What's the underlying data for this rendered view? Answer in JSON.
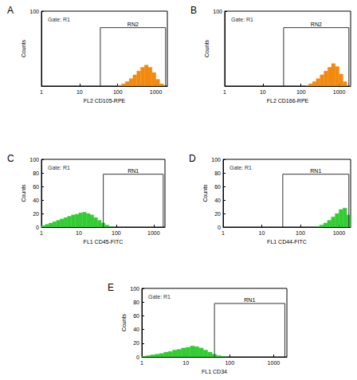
{
  "chart_data": [
    {
      "type": "histogram",
      "label": "A",
      "annotation": "Gate: R1",
      "x_label": "FL2 CD105-RPE",
      "y_label": "Counts",
      "log": "x",
      "xlim": [
        1,
        2000
      ],
      "xticks": [
        1,
        10,
        100,
        1000
      ],
      "ylim": [
        0,
        100
      ],
      "yticks": [
        100
      ],
      "color": "#f28a10",
      "bins": [
        1,
        1.26,
        1.58,
        2,
        2.51,
        3.16,
        3.98,
        5.01,
        6.31,
        7.94,
        10,
        12.6,
        15.8,
        20,
        25.1,
        31.6,
        39.8,
        50.1,
        63.1,
        79.4,
        100,
        126,
        158,
        200,
        251,
        316,
        398,
        501,
        631,
        794,
        1000,
        1259,
        1585,
        1995
      ],
      "counts": [
        0,
        0,
        0,
        0,
        0,
        0,
        0,
        0,
        0,
        0,
        0,
        0,
        0,
        0,
        0,
        0,
        0,
        0,
        0,
        0,
        1,
        3,
        6,
        10,
        15,
        20,
        25,
        28,
        25,
        18,
        9,
        3,
        0
      ],
      "gate": {
        "label": "RN2",
        "range": [
          35,
          1800
        ],
        "level": 78
      }
    },
    {
      "type": "histogram",
      "label": "B",
      "annotation": "Gate: R1",
      "x_label": "FL2 CD166-RPE",
      "y_label": "Counts",
      "log": "x",
      "xlim": [
        1,
        2000
      ],
      "xticks": [
        1,
        10,
        100,
        1000
      ],
      "ylim": [
        0,
        100
      ],
      "yticks": [
        100
      ],
      "color": "#f28a10",
      "bins": [
        1,
        1.26,
        1.58,
        2,
        2.51,
        3.16,
        3.98,
        5.01,
        6.31,
        7.94,
        10,
        12.6,
        15.8,
        20,
        25.1,
        31.6,
        39.8,
        50.1,
        63.1,
        79.4,
        100,
        126,
        158,
        200,
        251,
        316,
        398,
        501,
        631,
        794,
        1000,
        1259,
        1585,
        1995
      ],
      "counts": [
        0,
        0,
        0,
        0,
        0,
        0,
        0,
        0,
        0,
        0,
        0,
        0,
        0,
        0,
        0,
        0,
        0,
        0,
        0,
        0,
        0,
        1,
        3,
        6,
        10,
        15,
        20,
        25,
        30,
        26,
        16,
        6,
        1
      ],
      "gate": {
        "label": "RN2",
        "range": [
          35,
          1800
        ],
        "level": 78
      }
    },
    {
      "type": "histogram",
      "label": "C",
      "annotation": "Gate: R1",
      "x_label": "FL1 CD45-FITC",
      "y_label": "Counts",
      "log": "x",
      "xlim": [
        1,
        2000
      ],
      "xticks": [
        1,
        10,
        100,
        1000
      ],
      "ylim": [
        0,
        100
      ],
      "yticks": [
        0,
        20,
        40,
        60,
        80,
        100
      ],
      "color": "#33cc33",
      "bins": [
        1,
        1.26,
        1.58,
        2,
        2.51,
        3.16,
        3.98,
        5.01,
        6.31,
        7.94,
        10,
        12.6,
        15.8,
        20,
        25.1,
        31.6,
        39.8,
        50.1,
        63.1,
        79.4,
        100,
        126,
        158,
        200,
        251,
        316,
        398,
        501,
        631,
        794,
        1000,
        1259,
        1585,
        1995
      ],
      "counts": [
        2,
        4,
        6,
        8,
        10,
        12,
        14,
        16,
        18,
        19,
        21,
        22,
        20,
        18,
        14,
        10,
        6,
        3,
        1,
        0,
        0,
        0,
        0,
        0,
        0,
        0,
        0,
        0,
        0,
        0,
        0,
        0,
        0
      ],
      "gate": {
        "label": "RN1",
        "range": [
          45,
          1800
        ],
        "level": 78
      }
    },
    {
      "type": "histogram",
      "label": "D",
      "annotation": "Gate: R1",
      "x_label": "FL1 CD44-FITC",
      "y_label": "Counts",
      "log": "x",
      "xlim": [
        1,
        2000
      ],
      "xticks": [
        1,
        10,
        100,
        1000
      ],
      "ylim": [
        0,
        100
      ],
      "yticks": [
        0,
        20,
        40,
        60,
        80,
        100
      ],
      "color": "#33cc33",
      "bins": [
        1,
        1.26,
        1.58,
        2,
        2.51,
        3.16,
        3.98,
        5.01,
        6.31,
        7.94,
        10,
        12.6,
        15.8,
        20,
        25.1,
        31.6,
        39.8,
        50.1,
        63.1,
        79.4,
        100,
        126,
        158,
        200,
        251,
        316,
        398,
        501,
        631,
        794,
        1000,
        1259,
        1585,
        1995
      ],
      "counts": [
        0,
        0,
        0,
        0,
        0,
        0,
        0,
        0,
        0,
        0,
        0,
        0,
        0,
        0,
        0,
        0,
        0,
        0,
        0,
        0,
        0,
        0,
        0,
        0,
        1,
        3,
        6,
        10,
        15,
        20,
        26,
        28,
        18
      ],
      "gate": {
        "label": "RN1",
        "range": [
          35,
          1800
        ],
        "level": 78
      }
    },
    {
      "type": "histogram",
      "label": "E",
      "annotation": "Gate: R1",
      "x_label": "FL1 CD34",
      "y_label": "Counts",
      "log": "x",
      "xlim": [
        1,
        2000
      ],
      "xticks": [
        1,
        10,
        100,
        1000
      ],
      "ylim": [
        0,
        100
      ],
      "yticks": [
        0,
        20,
        40,
        60,
        80,
        100
      ],
      "color": "#33cc33",
      "bins": [
        1,
        1.26,
        1.58,
        2,
        2.51,
        3.16,
        3.98,
        5.01,
        6.31,
        7.94,
        10,
        12.6,
        15.8,
        20,
        25.1,
        31.6,
        39.8,
        50.1,
        63.1,
        79.4,
        100,
        126,
        158,
        200,
        251,
        316,
        398,
        501,
        631,
        794,
        1000,
        1259,
        1585,
        1995
      ],
      "counts": [
        1,
        2,
        3,
        4,
        5,
        7,
        8,
        10,
        11,
        13,
        14,
        16,
        15,
        13,
        10,
        7,
        4,
        2,
        1,
        0,
        0,
        0,
        0,
        0,
        0,
        0,
        0,
        0,
        0,
        0,
        0,
        0,
        0
      ],
      "gate": {
        "label": "RN1",
        "range": [
          45,
          1800
        ],
        "level": 78
      }
    }
  ]
}
